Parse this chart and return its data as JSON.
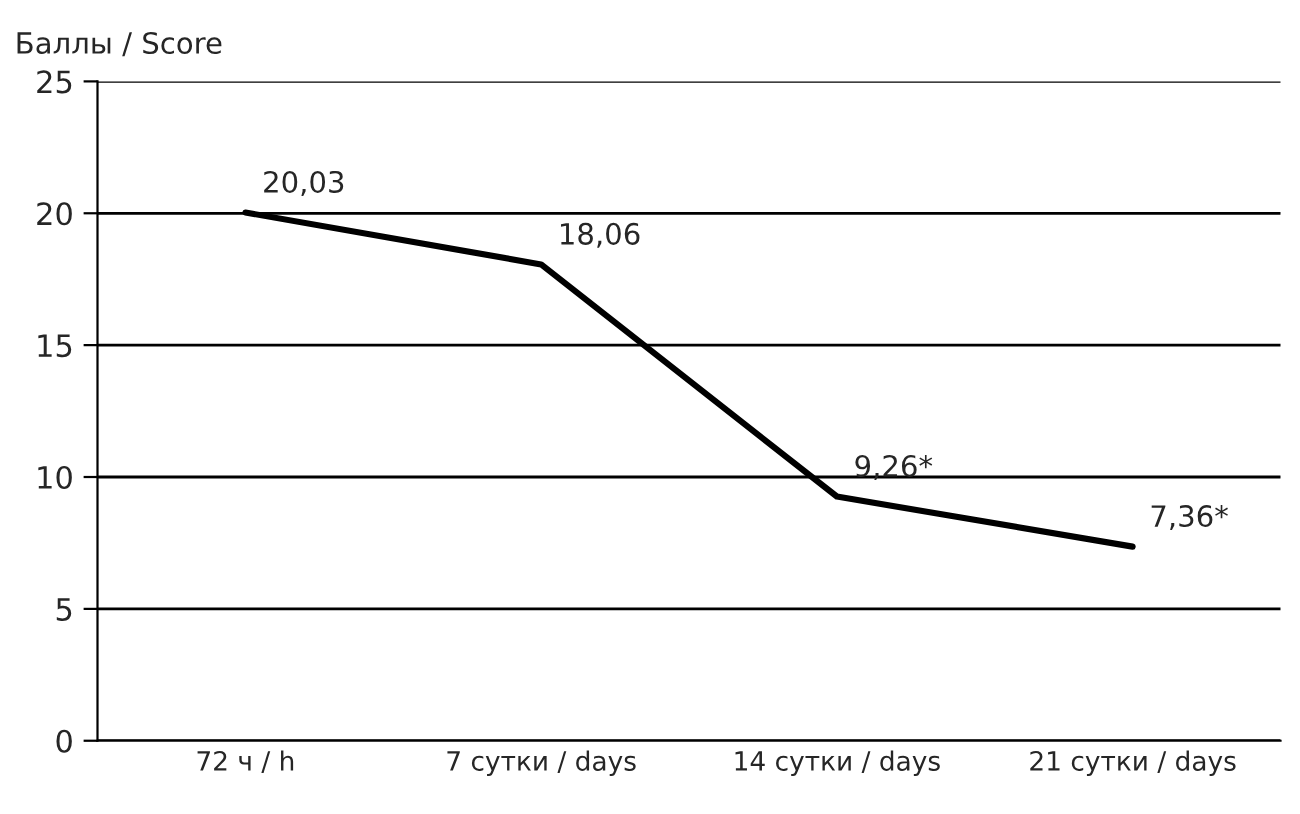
{
  "chart_data": {
    "type": "line",
    "ylabel": "Баллы / Score",
    "categories": [
      "72 ч / h",
      "7 сутки / days",
      "14 сутки / days",
      "21 сутки / days"
    ],
    "series": [
      {
        "color": "#000000",
        "values": [
          20.03,
          18.06,
          9.26,
          7.36
        ],
        "value_labels": [
          "20,03",
          "18,06",
          "9,26*",
          "7,36*"
        ]
      }
    ],
    "ylim": [
      0,
      25
    ],
    "yticks": [
      0,
      5,
      10,
      15,
      20,
      25
    ],
    "grid": "y",
    "legend": false,
    "marker": "none",
    "line_style": "solid"
  }
}
